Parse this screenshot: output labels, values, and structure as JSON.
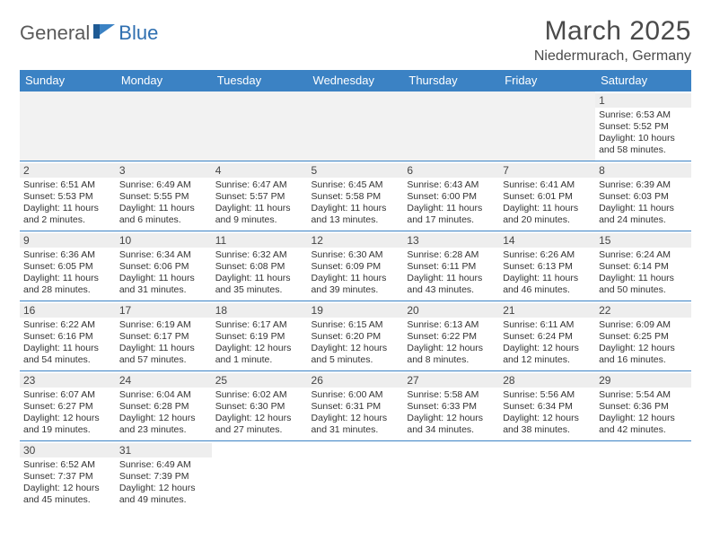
{
  "logo": {
    "part1": "General",
    "part2": "Blue"
  },
  "title": "March 2025",
  "location": "Niedermurach, Germany",
  "colors": {
    "header_bg": "#3b82c4",
    "header_text": "#ffffff",
    "daynum_bg": "#eeeeee",
    "body_text": "#333333",
    "logo_gray": "#5a5a5a",
    "logo_blue": "#2f6fb0"
  },
  "weekdays": [
    "Sunday",
    "Monday",
    "Tuesday",
    "Wednesday",
    "Thursday",
    "Friday",
    "Saturday"
  ],
  "weeks": [
    [
      null,
      null,
      null,
      null,
      null,
      null,
      {
        "n": "1",
        "sr": "Sunrise: 6:53 AM",
        "ss": "Sunset: 5:52 PM",
        "dl": "Daylight: 10 hours and 58 minutes."
      }
    ],
    [
      {
        "n": "2",
        "sr": "Sunrise: 6:51 AM",
        "ss": "Sunset: 5:53 PM",
        "dl": "Daylight: 11 hours and 2 minutes."
      },
      {
        "n": "3",
        "sr": "Sunrise: 6:49 AM",
        "ss": "Sunset: 5:55 PM",
        "dl": "Daylight: 11 hours and 6 minutes."
      },
      {
        "n": "4",
        "sr": "Sunrise: 6:47 AM",
        "ss": "Sunset: 5:57 PM",
        "dl": "Daylight: 11 hours and 9 minutes."
      },
      {
        "n": "5",
        "sr": "Sunrise: 6:45 AM",
        "ss": "Sunset: 5:58 PM",
        "dl": "Daylight: 11 hours and 13 minutes."
      },
      {
        "n": "6",
        "sr": "Sunrise: 6:43 AM",
        "ss": "Sunset: 6:00 PM",
        "dl": "Daylight: 11 hours and 17 minutes."
      },
      {
        "n": "7",
        "sr": "Sunrise: 6:41 AM",
        "ss": "Sunset: 6:01 PM",
        "dl": "Daylight: 11 hours and 20 minutes."
      },
      {
        "n": "8",
        "sr": "Sunrise: 6:39 AM",
        "ss": "Sunset: 6:03 PM",
        "dl": "Daylight: 11 hours and 24 minutes."
      }
    ],
    [
      {
        "n": "9",
        "sr": "Sunrise: 6:36 AM",
        "ss": "Sunset: 6:05 PM",
        "dl": "Daylight: 11 hours and 28 minutes."
      },
      {
        "n": "10",
        "sr": "Sunrise: 6:34 AM",
        "ss": "Sunset: 6:06 PM",
        "dl": "Daylight: 11 hours and 31 minutes."
      },
      {
        "n": "11",
        "sr": "Sunrise: 6:32 AM",
        "ss": "Sunset: 6:08 PM",
        "dl": "Daylight: 11 hours and 35 minutes."
      },
      {
        "n": "12",
        "sr": "Sunrise: 6:30 AM",
        "ss": "Sunset: 6:09 PM",
        "dl": "Daylight: 11 hours and 39 minutes."
      },
      {
        "n": "13",
        "sr": "Sunrise: 6:28 AM",
        "ss": "Sunset: 6:11 PM",
        "dl": "Daylight: 11 hours and 43 minutes."
      },
      {
        "n": "14",
        "sr": "Sunrise: 6:26 AM",
        "ss": "Sunset: 6:13 PM",
        "dl": "Daylight: 11 hours and 46 minutes."
      },
      {
        "n": "15",
        "sr": "Sunrise: 6:24 AM",
        "ss": "Sunset: 6:14 PM",
        "dl": "Daylight: 11 hours and 50 minutes."
      }
    ],
    [
      {
        "n": "16",
        "sr": "Sunrise: 6:22 AM",
        "ss": "Sunset: 6:16 PM",
        "dl": "Daylight: 11 hours and 54 minutes."
      },
      {
        "n": "17",
        "sr": "Sunrise: 6:19 AM",
        "ss": "Sunset: 6:17 PM",
        "dl": "Daylight: 11 hours and 57 minutes."
      },
      {
        "n": "18",
        "sr": "Sunrise: 6:17 AM",
        "ss": "Sunset: 6:19 PM",
        "dl": "Daylight: 12 hours and 1 minute."
      },
      {
        "n": "19",
        "sr": "Sunrise: 6:15 AM",
        "ss": "Sunset: 6:20 PM",
        "dl": "Daylight: 12 hours and 5 minutes."
      },
      {
        "n": "20",
        "sr": "Sunrise: 6:13 AM",
        "ss": "Sunset: 6:22 PM",
        "dl": "Daylight: 12 hours and 8 minutes."
      },
      {
        "n": "21",
        "sr": "Sunrise: 6:11 AM",
        "ss": "Sunset: 6:24 PM",
        "dl": "Daylight: 12 hours and 12 minutes."
      },
      {
        "n": "22",
        "sr": "Sunrise: 6:09 AM",
        "ss": "Sunset: 6:25 PM",
        "dl": "Daylight: 12 hours and 16 minutes."
      }
    ],
    [
      {
        "n": "23",
        "sr": "Sunrise: 6:07 AM",
        "ss": "Sunset: 6:27 PM",
        "dl": "Daylight: 12 hours and 19 minutes."
      },
      {
        "n": "24",
        "sr": "Sunrise: 6:04 AM",
        "ss": "Sunset: 6:28 PM",
        "dl": "Daylight: 12 hours and 23 minutes."
      },
      {
        "n": "25",
        "sr": "Sunrise: 6:02 AM",
        "ss": "Sunset: 6:30 PM",
        "dl": "Daylight: 12 hours and 27 minutes."
      },
      {
        "n": "26",
        "sr": "Sunrise: 6:00 AM",
        "ss": "Sunset: 6:31 PM",
        "dl": "Daylight: 12 hours and 31 minutes."
      },
      {
        "n": "27",
        "sr": "Sunrise: 5:58 AM",
        "ss": "Sunset: 6:33 PM",
        "dl": "Daylight: 12 hours and 34 minutes."
      },
      {
        "n": "28",
        "sr": "Sunrise: 5:56 AM",
        "ss": "Sunset: 6:34 PM",
        "dl": "Daylight: 12 hours and 38 minutes."
      },
      {
        "n": "29",
        "sr": "Sunrise: 5:54 AM",
        "ss": "Sunset: 6:36 PM",
        "dl": "Daylight: 12 hours and 42 minutes."
      }
    ],
    [
      {
        "n": "30",
        "sr": "Sunrise: 6:52 AM",
        "ss": "Sunset: 7:37 PM",
        "dl": "Daylight: 12 hours and 45 minutes."
      },
      {
        "n": "31",
        "sr": "Sunrise: 6:49 AM",
        "ss": "Sunset: 7:39 PM",
        "dl": "Daylight: 12 hours and 49 minutes."
      },
      null,
      null,
      null,
      null,
      null
    ]
  ]
}
